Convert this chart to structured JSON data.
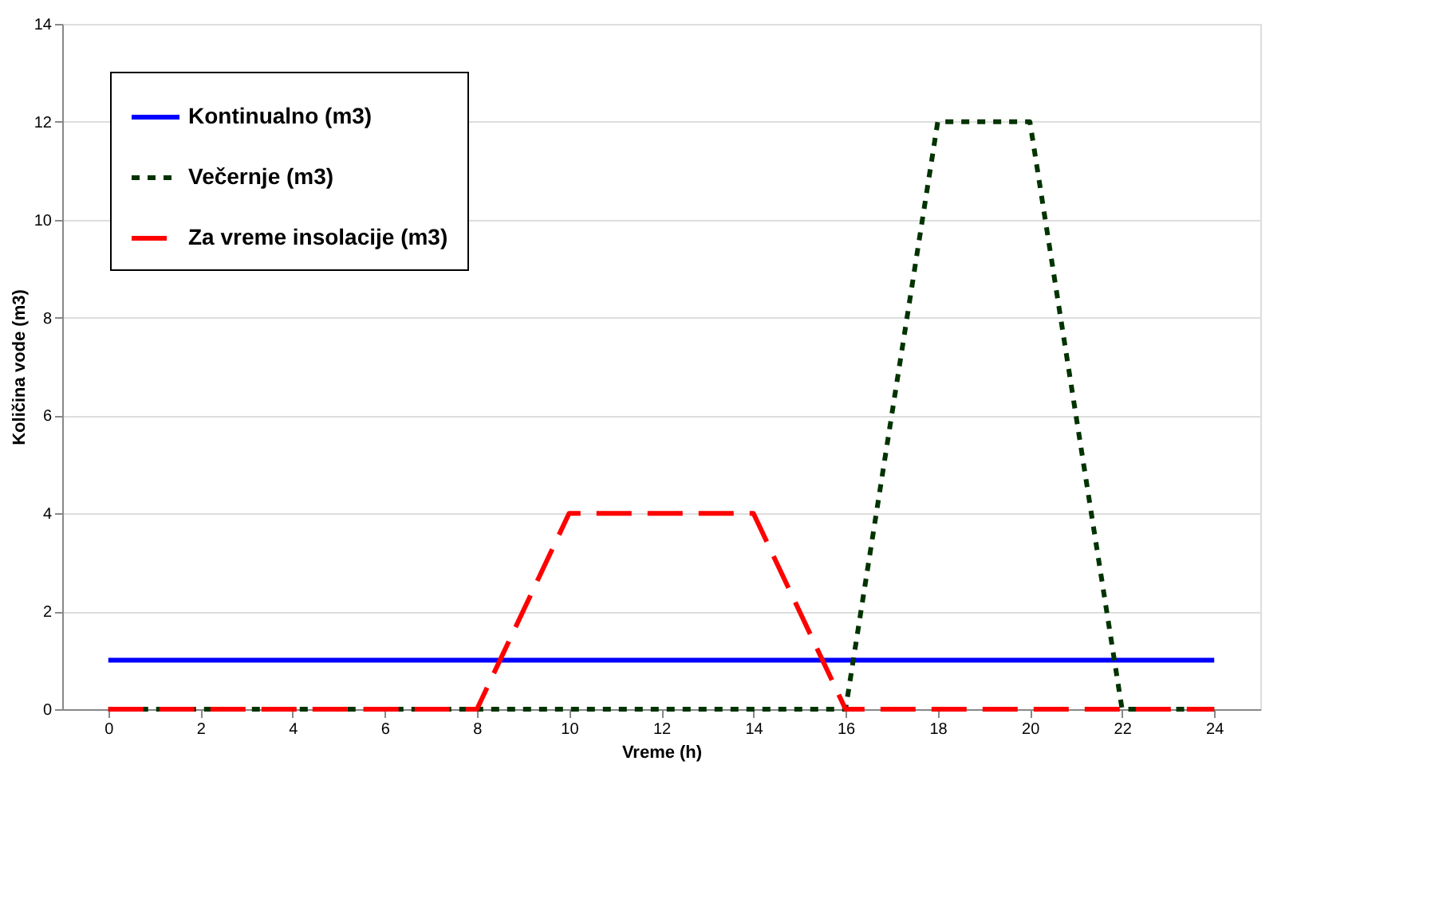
{
  "chart_data": {
    "type": "line",
    "xlabel": "Vreme (h)",
    "ylabel": "Količina vode (m3)",
    "xlim": [
      -1,
      25
    ],
    "xticks": [
      0,
      2,
      4,
      6,
      8,
      10,
      12,
      14,
      16,
      18,
      20,
      22,
      24
    ],
    "ylim": [
      0,
      14
    ],
    "yticks": [
      0,
      2,
      4,
      6,
      8,
      10,
      12,
      14
    ],
    "grid": "y",
    "legend": "top left",
    "marker": "none",
    "series": [
      {
        "name": "Kontinualno (m3)",
        "color": "#0000ff",
        "line_style": "solid",
        "x": [
          0,
          24
        ],
        "values": [
          1,
          1
        ]
      },
      {
        "name": "Večernje (m3)",
        "color": "#003300",
        "line_style": "dotted",
        "x": [
          0,
          16,
          18,
          20,
          22,
          24
        ],
        "values": [
          0,
          0,
          12,
          12,
          0,
          0
        ]
      },
      {
        "name": "Za vreme insolacije (m3)",
        "color": "#ff0000",
        "line_style": "dashed",
        "x": [
          0,
          8,
          10,
          14,
          16,
          24
        ],
        "values": [
          0,
          0,
          4,
          4,
          0,
          0
        ]
      }
    ]
  }
}
